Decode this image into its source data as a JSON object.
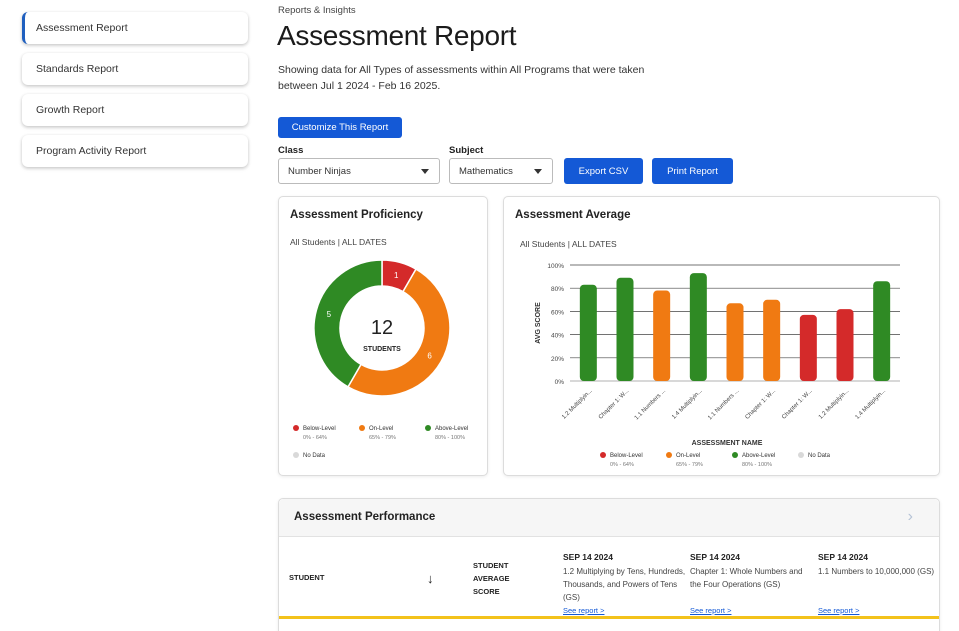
{
  "sidebar": {
    "items": [
      {
        "label": "Assessment Report"
      },
      {
        "label": "Standards Report"
      },
      {
        "label": "Growth Report"
      },
      {
        "label": "Program Activity Report"
      }
    ]
  },
  "header": {
    "breadcrumb": "Reports & Insights",
    "title": "Assessment Report",
    "description": "Showing data for All Types of assessments within All Programs that were taken between Jul 1 2024 - Feb 16 2025."
  },
  "controls": {
    "customize_label": "Customize This Report",
    "class_label": "Class",
    "class_value": "Number Ninjas",
    "subject_label": "Subject",
    "subject_value": "Mathematics",
    "export_label": "Export CSV",
    "print_label": "Print Report"
  },
  "colors": {
    "below": "#d42a2a",
    "on": "#f07a12",
    "above": "#2f8a24",
    "nodata": "#d9d9d9",
    "accent": "#1459d6"
  },
  "proficiency": {
    "title": "Assessment Proficiency",
    "subtitle": "All Students | ALL DATES",
    "total": "12",
    "total_label": "STUDENTS",
    "legend": [
      {
        "label": "Below-Level",
        "range": "0% - 64%",
        "color_key": "below"
      },
      {
        "label": "On-Level",
        "range": "65% - 79%",
        "color_key": "on"
      },
      {
        "label": "Above-Level",
        "range": "80% - 100%",
        "color_key": "above"
      },
      {
        "label": "No Data",
        "range": "",
        "color_key": "nodata"
      }
    ]
  },
  "average": {
    "title": "Assessment Average",
    "subtitle": "All Students | ALL DATES",
    "legend": [
      {
        "label": "Below-Level",
        "range": "0% - 64%",
        "color_key": "below"
      },
      {
        "label": "On-Level",
        "range": "65% - 79%",
        "color_key": "on"
      },
      {
        "label": "Above-Level",
        "range": "80% - 100%",
        "color_key": "above"
      },
      {
        "label": "No Data",
        "range": "",
        "color_key": "nodata"
      }
    ]
  },
  "chart_data": [
    {
      "type": "pie",
      "title": "Assessment Proficiency",
      "categories": [
        "Below-Level",
        "On-Level",
        "Above-Level"
      ],
      "values": [
        1,
        6,
        5
      ],
      "colors": [
        "#d42a2a",
        "#f07a12",
        "#2f8a24"
      ],
      "center_value": "12",
      "center_label": "STUDENTS"
    },
    {
      "type": "bar",
      "title": "Assessment Average",
      "xlabel": "ASSESSMENT NAME",
      "ylabel": "AVG SCORE",
      "ylim": [
        0,
        100
      ],
      "yticks": [
        "0%",
        "20%",
        "40%",
        "60%",
        "80%",
        "100%"
      ],
      "grid": true,
      "categories": [
        "1.2 Multiplyin...",
        "Chapter 1: W...",
        "1.1 Numbers ...",
        "1.4 Multiplyin...",
        "1.1 Numbers ...",
        "Chapter 1: W...",
        "Chapter 1: W...",
        "1.2 Multiplyin...",
        "1.4 Multiplyin..."
      ],
      "values": [
        83,
        89,
        78,
        93,
        67,
        70,
        57,
        62,
        86
      ],
      "bar_levels": [
        "above",
        "above",
        "on",
        "above",
        "on",
        "on",
        "below",
        "below",
        "above"
      ]
    }
  ],
  "performance": {
    "title": "Assessment Performance",
    "col_student": "STUDENT",
    "col_avg": [
      "STUDENT",
      "AVERAGE",
      "SCORE"
    ],
    "assessments": [
      {
        "date": "SEP 14 2024",
        "name": "1.2 Multiplying by Tens, Hundreds, Thousands, and Powers of Tens (GS)",
        "link": "See report >"
      },
      {
        "date": "SEP 14 2024",
        "name": "Chapter 1: Whole Numbers and the Four Operations (GS)",
        "link": "See report >"
      },
      {
        "date": "SEP 14 2024",
        "name": "1.1 Numbers to 10,000,000 (GS)",
        "link": "See report >"
      }
    ]
  }
}
